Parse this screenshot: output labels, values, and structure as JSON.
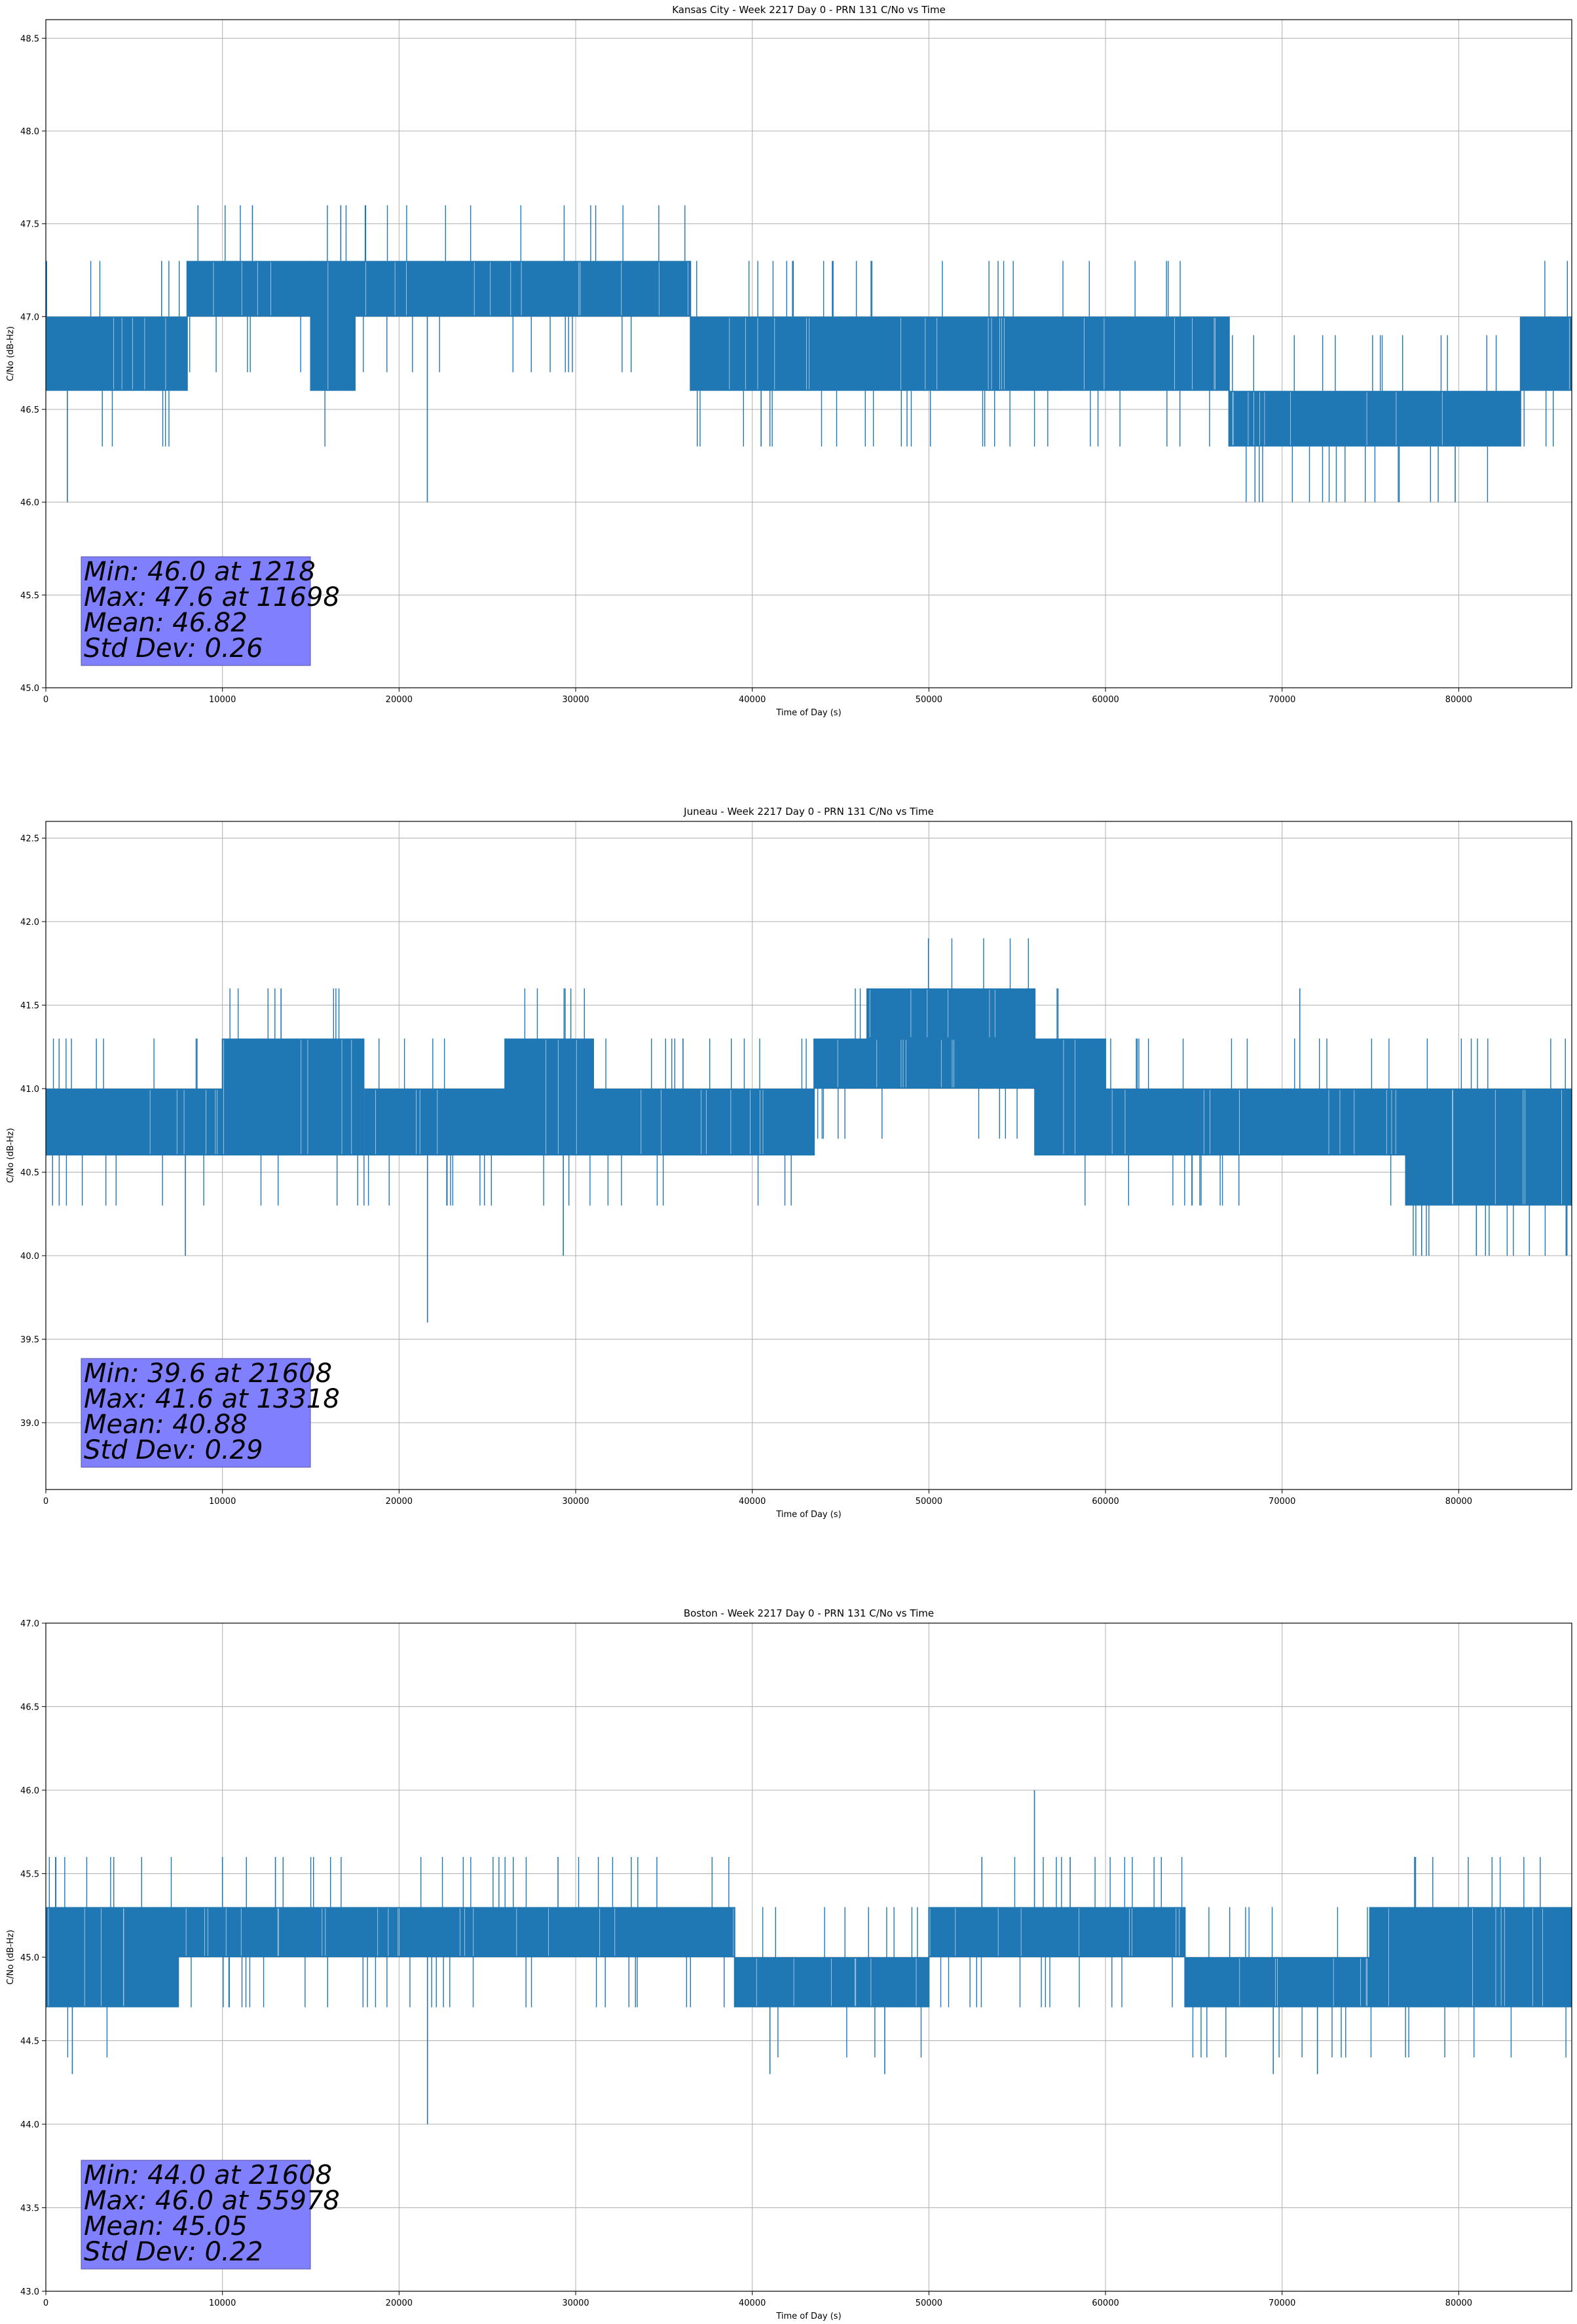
{
  "chart_data": [
    {
      "type": "line",
      "title": "Kansas City - Week 2217 Day 0 - PRN 131 C/No vs Time",
      "xlabel": "Time of Day (s)",
      "ylabel": "C/No (dB-Hz)",
      "xlim": [
        0,
        86400
      ],
      "ylim": [
        45.0,
        48.6
      ],
      "xticks": [
        "0",
        "10000",
        "20000",
        "30000",
        "40000",
        "50000",
        "60000",
        "70000",
        "80000"
      ],
      "yticks": [
        "45.0",
        "45.5",
        "46.0",
        "46.5",
        "47.0",
        "47.5",
        "48.0",
        "48.5"
      ],
      "grid": true,
      "color": "#1f77b4",
      "stats_box_color": "#8080ff",
      "stats": [
        "Min: 46.0 at 1218",
        "Max: 47.6 at 11698",
        "Mean: 46.82",
        "Std Dev: 0.26"
      ],
      "series": [
        {
          "values": {
            "bands": [
              {
                "x": [
                  0,
                  8000
                ],
                "min": 46.6,
                "max": 47.0
              },
              {
                "x": [
                  8000,
                  15000
                ],
                "min": 47.0,
                "max": 47.3
              },
              {
                "x": [
                  15000,
                  17500
                ],
                "min": 46.6,
                "max": 47.3
              },
              {
                "x": [
                  17500,
                  36500
                ],
                "min": 47.0,
                "max": 47.3
              },
              {
                "x": [
                  36500,
                  57500
                ],
                "min": 46.6,
                "max": 47.0
              },
              {
                "x": [
                  57500,
                  67000
                ],
                "min": 46.6,
                "max": 47.0
              },
              {
                "x": [
                  67000,
                  83500
                ],
                "min": 46.3,
                "max": 46.6
              },
              {
                "x": [
                  83500,
                  86400
                ],
                "min": 46.6,
                "max": 47.0
              }
            ],
            "spikes": [
              [
                1218,
                46.0
              ],
              [
                11698,
                47.6
              ],
              [
                16700,
                47.6
              ],
              [
                21600,
                46.0
              ],
              [
                79800,
                46.0
              ],
              [
                40500,
                46.3
              ],
              [
                72000,
                46.3
              ]
            ]
          }
        }
      ]
    },
    {
      "type": "line",
      "title": "Juneau - Week 2217 Day 0 - PRN 131 C/No vs Time",
      "xlabel": "Time of Day (s)",
      "ylabel": "C/No (dB-Hz)",
      "xlim": [
        0,
        86400
      ],
      "ylim": [
        38.6,
        42.6
      ],
      "xticks": [
        "0",
        "10000",
        "20000",
        "30000",
        "40000",
        "50000",
        "60000",
        "70000",
        "80000"
      ],
      "yticks": [
        "39.0",
        "39.5",
        "40.0",
        "40.5",
        "41.0",
        "41.5",
        "42.0",
        "42.5"
      ],
      "grid": true,
      "color": "#1f77b4",
      "stats_box_color": "#8080ff",
      "stats": [
        "Min: 39.6 at 21608",
        "Max: 41.6 at 13318",
        "Mean: 40.88",
        "Std Dev: 0.29"
      ],
      "series": [
        {
          "values": {
            "bands": [
              {
                "x": [
                  0,
                  10000
                ],
                "min": 40.6,
                "max": 41.0
              },
              {
                "x": [
                  10000,
                  18000
                ],
                "min": 40.6,
                "max": 41.3
              },
              {
                "x": [
                  18000,
                  26000
                ],
                "min": 40.6,
                "max": 41.0
              },
              {
                "x": [
                  26000,
                  31000
                ],
                "min": 40.6,
                "max": 41.3
              },
              {
                "x": [
                  31000,
                  43500
                ],
                "min": 40.6,
                "max": 41.0
              },
              {
                "x": [
                  43500,
                  56000
                ],
                "min": 41.0,
                "max": 41.3
              },
              {
                "x": [
                  46500,
                  56000
                ],
                "min": 41.3,
                "max": 41.6
              },
              {
                "x": [
                  56000,
                  60000
                ],
                "min": 40.6,
                "max": 41.3
              },
              {
                "x": [
                  60000,
                  77000
                ],
                "min": 40.6,
                "max": 41.0
              },
              {
                "x": [
                  77000,
                  86400
                ],
                "min": 40.3,
                "max": 41.0
              }
            ],
            "spikes": [
              [
                21608,
                39.6
              ],
              [
                13318,
                41.6
              ],
              [
                7900,
                40.0
              ],
              [
                29300,
                40.0
              ],
              [
                71000,
                41.6
              ],
              [
                77900,
                40.0
              ],
              [
                81000,
                40.0
              ],
              [
                84000,
                40.0
              ]
            ]
          }
        }
      ]
    },
    {
      "type": "line",
      "title": "Boston - Week 2217 Day 0 - PRN 131 C/No vs Time",
      "xlabel": "Time of Day (s)",
      "ylabel": "C/No (dB-Hz)",
      "xlim": [
        0,
        86400
      ],
      "ylim": [
        43.0,
        47.0
      ],
      "xticks": [
        "0",
        "10000",
        "20000",
        "30000",
        "40000",
        "50000",
        "60000",
        "70000",
        "80000"
      ],
      "yticks": [
        "43.0",
        "43.5",
        "44.0",
        "44.5",
        "45.0",
        "45.5",
        "46.0",
        "46.5",
        "47.0"
      ],
      "grid": true,
      "color": "#1f77b4",
      "stats_box_color": "#8080ff",
      "stats": [
        "Min: 44.0 at 21608",
        "Max: 46.0 at 55978",
        "Mean: 45.05",
        "Std Dev: 0.22"
      ],
      "series": [
        {
          "values": {
            "bands": [
              {
                "x": [
                  0,
                  7500
                ],
                "min": 44.7,
                "max": 45.3
              },
              {
                "x": [
                  7500,
                  39000
                ],
                "min": 45.0,
                "max": 45.3
              },
              {
                "x": [
                  39000,
                  50000
                ],
                "min": 44.7,
                "max": 45.0
              },
              {
                "x": [
                  50000,
                  64500
                ],
                "min": 45.0,
                "max": 45.3
              },
              {
                "x": [
                  64500,
                  75000
                ],
                "min": 44.7,
                "max": 45.0
              },
              {
                "x": [
                  75000,
                  86400
                ],
                "min": 44.7,
                "max": 45.3
              }
            ],
            "spikes": [
              [
                21608,
                44.0
              ],
              [
                55978,
                46.0
              ],
              [
                10000,
                45.6
              ],
              [
                13000,
                45.6
              ],
              [
                29000,
                45.6
              ],
              [
                53000,
                45.6
              ],
              [
                58000,
                45.6
              ],
              [
                77500,
                45.6
              ],
              [
                41000,
                44.3
              ],
              [
                47500,
                44.3
              ],
              [
                69500,
                44.3
              ],
              [
                72000,
                44.3
              ],
              [
                1500,
                44.3
              ]
            ]
          }
        }
      ]
    }
  ]
}
